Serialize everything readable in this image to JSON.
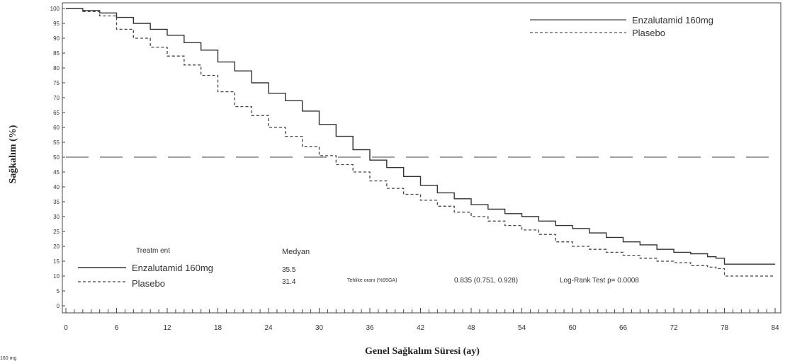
{
  "chart_data": {
    "type": "line",
    "title": "",
    "xlabel": "Genel Sağkalım Süresi (ay)",
    "ylabel": "Sağkalım (%)",
    "xlim": [
      0,
      84
    ],
    "ylim": [
      0,
      100
    ],
    "xticks": [
      0,
      6,
      12,
      18,
      24,
      30,
      36,
      42,
      48,
      54,
      60,
      66,
      72,
      78,
      84
    ],
    "yticks": [
      0,
      5,
      10,
      15,
      20,
      25,
      30,
      35,
      40,
      45,
      50,
      55,
      60,
      65,
      70,
      75,
      80,
      85,
      90,
      95,
      100
    ],
    "grid": false,
    "reference_line": {
      "y": 50,
      "style": "dashed"
    },
    "legend_top": {
      "position": "top-right",
      "entries": [
        "Enzalutamid 160mg",
        "Plasebo"
      ]
    },
    "series": [
      {
        "name": "Enzalutamid 160mg",
        "style": "solid",
        "points": [
          [
            0,
            100
          ],
          [
            2,
            99.3
          ],
          [
            4,
            98.5
          ],
          [
            6,
            97
          ],
          [
            8,
            95
          ],
          [
            10,
            93
          ],
          [
            12,
            91
          ],
          [
            14,
            88.5
          ],
          [
            16,
            86
          ],
          [
            18,
            82
          ],
          [
            20,
            79
          ],
          [
            22,
            75
          ],
          [
            24,
            71.5
          ],
          [
            26,
            69
          ],
          [
            28,
            65.5
          ],
          [
            30,
            61
          ],
          [
            32,
            57
          ],
          [
            34,
            52.5
          ],
          [
            36,
            49
          ],
          [
            38,
            46.5
          ],
          [
            40,
            43.5
          ],
          [
            42,
            40.5
          ],
          [
            44,
            38
          ],
          [
            46,
            36
          ],
          [
            48,
            34
          ],
          [
            50,
            32.5
          ],
          [
            52,
            31
          ],
          [
            54,
            30
          ],
          [
            56,
            28.5
          ],
          [
            58,
            27
          ],
          [
            60,
            26
          ],
          [
            62,
            24.5
          ],
          [
            64,
            23
          ],
          [
            66,
            21.5
          ],
          [
            68,
            20.5
          ],
          [
            70,
            19
          ],
          [
            72,
            18
          ],
          [
            74,
            17.5
          ],
          [
            76,
            16.5
          ],
          [
            77,
            16
          ],
          [
            78,
            14
          ],
          [
            84,
            14
          ]
        ]
      },
      {
        "name": "Plasebo",
        "style": "dashed",
        "points": [
          [
            0,
            100
          ],
          [
            2,
            99
          ],
          [
            4,
            97.5
          ],
          [
            6,
            93
          ],
          [
            8,
            90
          ],
          [
            10,
            87
          ],
          [
            12,
            84
          ],
          [
            14,
            81
          ],
          [
            16,
            77.5
          ],
          [
            18,
            72
          ],
          [
            20,
            67
          ],
          [
            22,
            64
          ],
          [
            24,
            60
          ],
          [
            26,
            57
          ],
          [
            28,
            53.5
          ],
          [
            30,
            50.5
          ],
          [
            32,
            47.5
          ],
          [
            34,
            45
          ],
          [
            36,
            42
          ],
          [
            38,
            39.5
          ],
          [
            40,
            37.5
          ],
          [
            42,
            35.5
          ],
          [
            44,
            33.5
          ],
          [
            46,
            31.5
          ],
          [
            48,
            30
          ],
          [
            50,
            28.5
          ],
          [
            52,
            27
          ],
          [
            54,
            25.5
          ],
          [
            56,
            24
          ],
          [
            58,
            21.5
          ],
          [
            60,
            20
          ],
          [
            62,
            19
          ],
          [
            64,
            18
          ],
          [
            66,
            17
          ],
          [
            68,
            16
          ],
          [
            70,
            15
          ],
          [
            72,
            14.5
          ],
          [
            74,
            13.5
          ],
          [
            76,
            13
          ],
          [
            77,
            12.5
          ],
          [
            78,
            10
          ],
          [
            84,
            10
          ]
        ]
      }
    ]
  },
  "lower_table": {
    "treatment_header": "Treatm ent",
    "median_header": "Medyan",
    "rows": [
      {
        "label": "Enzalutamid 160mg",
        "median": "35.5",
        "style": "solid"
      },
      {
        "label": "Plasebo",
        "median": "31.4",
        "style": "dashed"
      }
    ],
    "hr_label": "Tehlike oranı (%95GA)",
    "hr_value": "0.835 (0.751, 0.928)",
    "logrank": "Log-Rank Test p= 0.0008"
  },
  "footnote_fragment": "160 mg"
}
